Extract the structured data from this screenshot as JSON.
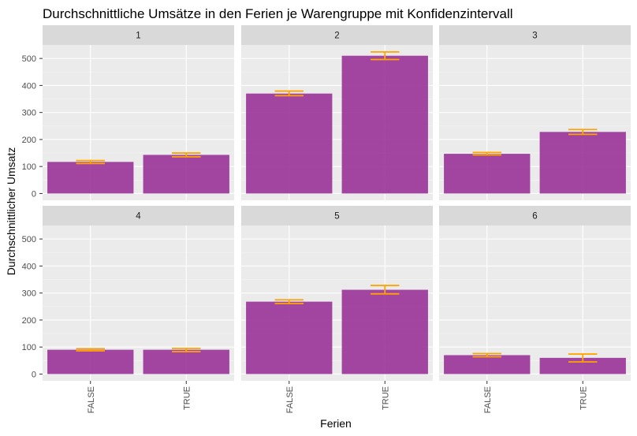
{
  "chart_data": {
    "type": "bar",
    "title": "Durchschnittliche Umsätze in den Ferien je Warengruppe mit Konfidenzintervall",
    "xlabel": "Ferien",
    "ylabel": "Durchschnittlicher Umsatz",
    "categories": [
      "FALSE",
      "TRUE"
    ],
    "yticks": [
      0,
      100,
      200,
      300,
      400,
      500
    ],
    "ylim": [
      -25,
      550
    ],
    "grid": true,
    "legend": "none",
    "colors": {
      "bar": "#993399",
      "error_bar": "#FFA500",
      "panel_bg": "#EBEBEB",
      "strip_bg": "#D9D9D9",
      "grid_major": "#FFFFFF"
    },
    "facets": [
      {
        "label": "1",
        "values": [
          117,
          143
        ],
        "ci_low": [
          111,
          136
        ],
        "ci_high": [
          122,
          150
        ]
      },
      {
        "label": "2",
        "values": [
          370,
          510
        ],
        "ci_low": [
          362,
          496
        ],
        "ci_high": [
          379,
          524
        ]
      },
      {
        "label": "3",
        "values": [
          147,
          228
        ],
        "ci_low": [
          143,
          219
        ],
        "ci_high": [
          152,
          237
        ]
      },
      {
        "label": "4",
        "values": [
          90,
          90
        ],
        "ci_low": [
          86,
          83
        ],
        "ci_high": [
          94,
          95
        ]
      },
      {
        "label": "5",
        "values": [
          268,
          312
        ],
        "ci_low": [
          261,
          297
        ],
        "ci_high": [
          275,
          328
        ]
      },
      {
        "label": "6",
        "values": [
          70,
          60
        ],
        "ci_low": [
          64,
          45
        ],
        "ci_high": [
          76,
          74
        ]
      }
    ]
  }
}
